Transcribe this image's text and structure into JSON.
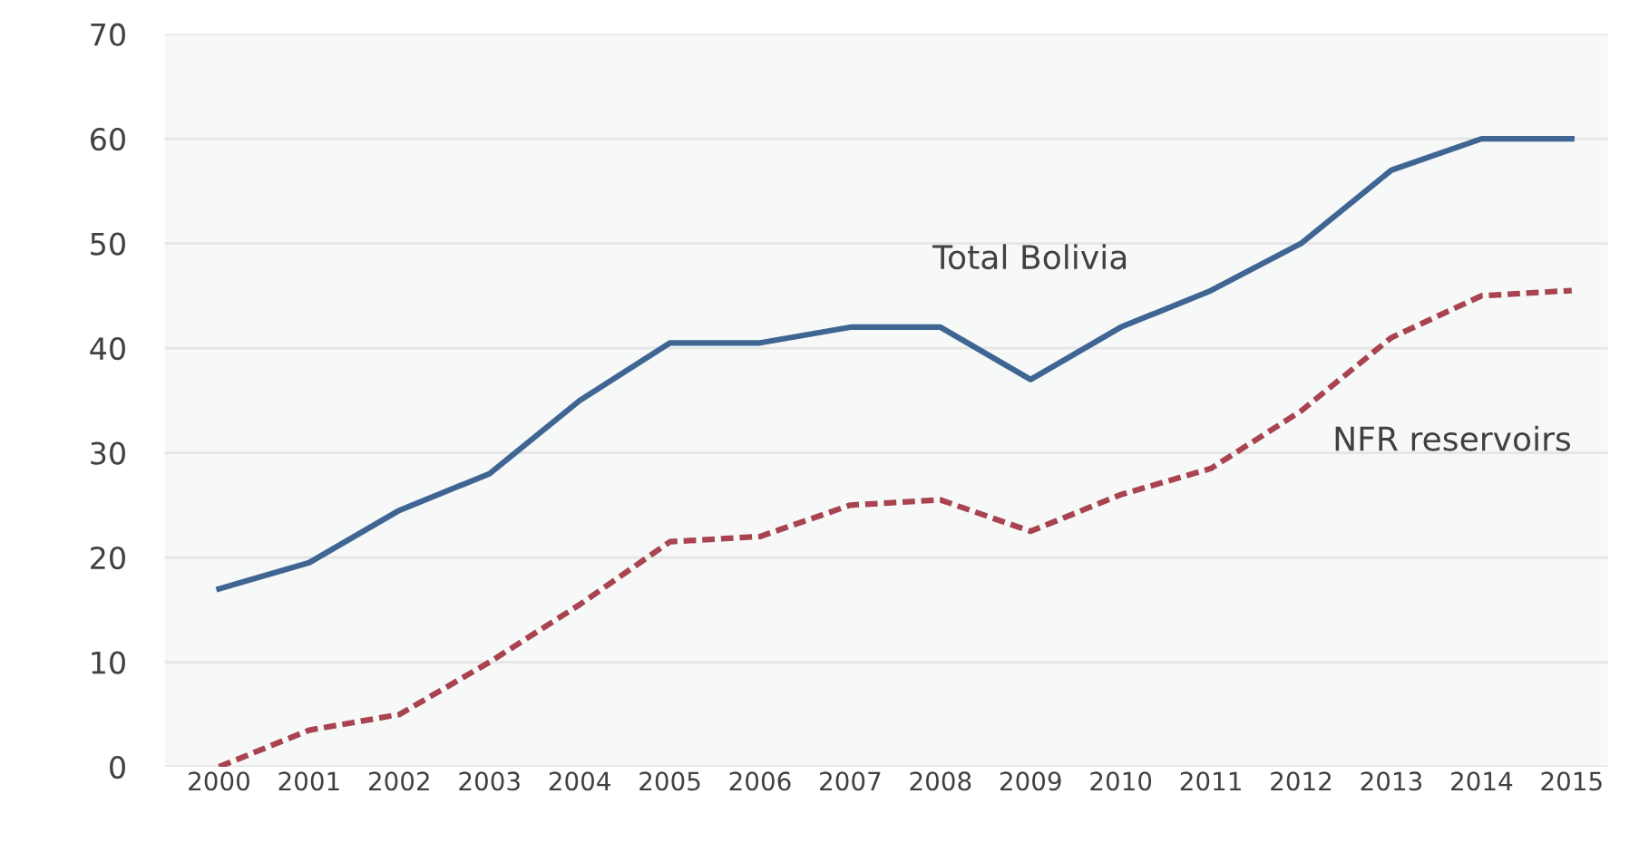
{
  "chart_data": {
    "type": "line",
    "categories": [
      "2000",
      "2001",
      "2002",
      "2003",
      "2004",
      "2005",
      "2006",
      "2007",
      "2008",
      "2009",
      "2010",
      "2011",
      "2012",
      "2013",
      "2014",
      "2015"
    ],
    "series": [
      {
        "name": "Total Bolivia",
        "color": "#3f6593",
        "line_style": "solid",
        "values": [
          17,
          19.5,
          24.5,
          28,
          35,
          40.5,
          40.5,
          42,
          42,
          37,
          42,
          45.5,
          50,
          57,
          60,
          60
        ]
      },
      {
        "name": "NFR reservoirs",
        "color": "#a8434f",
        "line_style": "dashed",
        "values": [
          0,
          3.5,
          5,
          10,
          15.5,
          21.5,
          22,
          25,
          25.5,
          22.5,
          26,
          28.5,
          34,
          41,
          45,
          45.5
        ]
      }
    ],
    "ylim": [
      0,
      70
    ],
    "yticks": [
      0,
      10,
      20,
      30,
      40,
      50,
      60,
      70
    ],
    "grid": "y",
    "legend": false,
    "marker": "none"
  }
}
